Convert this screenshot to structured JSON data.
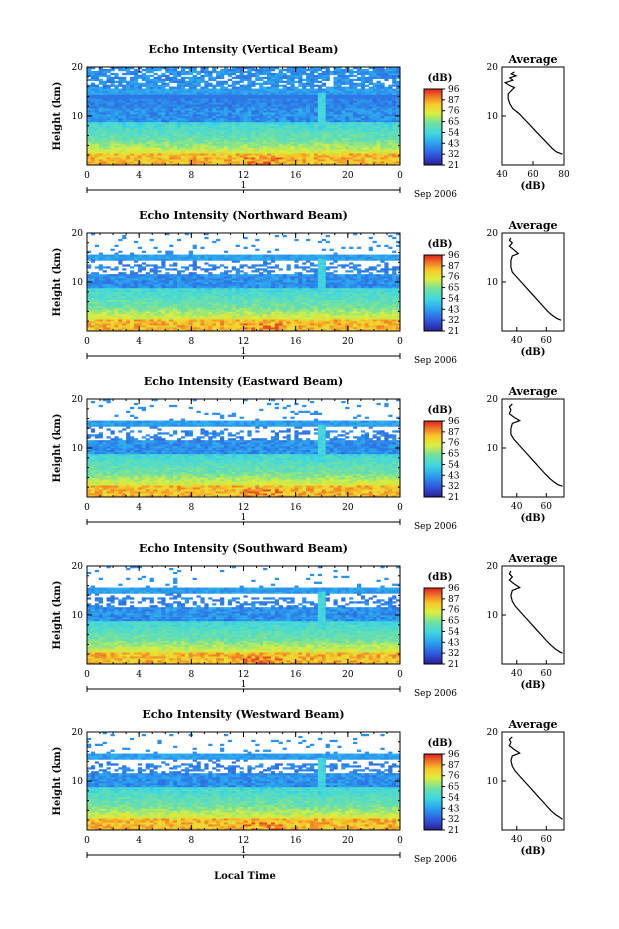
{
  "figure": {
    "xaxis_bottom_label": "Local Time",
    "date_label": "Sep 2006",
    "day_label": "1"
  },
  "chart_data": [
    {
      "type": "heatmap",
      "title": "Echo Intensity (Vertical Beam)",
      "ylabel": "Height (km)",
      "xlabel": "Local Time",
      "xlim": [
        0,
        24
      ],
      "ylim": [
        0,
        20
      ],
      "xticks": [
        "0",
        "4",
        "8",
        "12",
        "16",
        "20",
        "0"
      ],
      "yticks": [
        "20",
        "10"
      ],
      "colorbar": {
        "unit": "(dB)",
        "ticks": [
          "96",
          "87",
          "76",
          "65",
          "54",
          "43",
          "32",
          "21"
        ]
      },
      "profile": {
        "title": "Average",
        "xlabel": "(dB)",
        "xticks": [
          "40",
          "60",
          "80"
        ],
        "xlim": [
          40,
          80
        ],
        "yticks": [
          "20",
          "10"
        ],
        "points": [
          [
            48,
            19
          ],
          [
            46,
            18.6
          ],
          [
            49,
            18.2
          ],
          [
            45,
            17.8
          ],
          [
            47,
            17.3
          ],
          [
            42,
            16.8
          ],
          [
            45,
            16.2
          ],
          [
            48,
            15.8
          ],
          [
            46,
            15.2
          ],
          [
            44,
            14.5
          ],
          [
            44,
            13.5
          ],
          [
            45,
            12.5
          ],
          [
            47,
            11.5
          ],
          [
            51,
            10.5
          ],
          [
            54,
            9.5
          ],
          [
            57,
            8.5
          ],
          [
            60,
            7.5
          ],
          [
            63,
            6.5
          ],
          [
            66,
            5.5
          ],
          [
            69,
            4.5
          ],
          [
            72,
            3.5
          ],
          [
            75,
            2.7
          ],
          [
            79,
            2.2
          ]
        ]
      }
    },
    {
      "type": "heatmap",
      "title": "Echo Intensity (Northward Beam)",
      "ylabel": "Height (km)",
      "xlabel": "Local Time",
      "xlim": [
        0,
        24
      ],
      "ylim": [
        0,
        20
      ],
      "xticks": [
        "0",
        "4",
        "8",
        "12",
        "16",
        "20",
        "0"
      ],
      "yticks": [
        "20",
        "10"
      ],
      "colorbar": {
        "unit": "(dB)",
        "ticks": [
          "96",
          "87",
          "76",
          "65",
          "54",
          "43",
          "32",
          "21"
        ]
      },
      "profile": {
        "title": "Average",
        "xlabel": "(dB)",
        "xticks": [
          "40",
          "60"
        ],
        "xlim": [
          30,
          72
        ],
        "yticks": [
          "20",
          "10"
        ],
        "points": [
          [
            36,
            19
          ],
          [
            35,
            18.5
          ],
          [
            37,
            18
          ],
          [
            35,
            17.3
          ],
          [
            38,
            16.6
          ],
          [
            41,
            15.8
          ],
          [
            37,
            15.3
          ],
          [
            36,
            14.4
          ],
          [
            36,
            13
          ],
          [
            37,
            12
          ],
          [
            40,
            11
          ],
          [
            43,
            10
          ],
          [
            46,
            9
          ],
          [
            49,
            8
          ],
          [
            52,
            7
          ],
          [
            55,
            6
          ],
          [
            58,
            5
          ],
          [
            61,
            4
          ],
          [
            64,
            3.2
          ],
          [
            67,
            2.6
          ],
          [
            70,
            2.2
          ]
        ]
      }
    },
    {
      "type": "heatmap",
      "title": "Echo Intensity (Eastward Beam)",
      "ylabel": "Height (km)",
      "xlabel": "Local Time",
      "xlim": [
        0,
        24
      ],
      "ylim": [
        0,
        20
      ],
      "xticks": [
        "0",
        "4",
        "8",
        "12",
        "16",
        "20",
        "0"
      ],
      "yticks": [
        "20",
        "10"
      ],
      "colorbar": {
        "unit": "(dB)",
        "ticks": [
          "96",
          "87",
          "76",
          "65",
          "54",
          "43",
          "32",
          "21"
        ]
      },
      "profile": {
        "title": "Average",
        "xlabel": "(dB)",
        "xticks": [
          "40",
          "60"
        ],
        "xlim": [
          30,
          72
        ],
        "yticks": [
          "20",
          "10"
        ],
        "points": [
          [
            37,
            19
          ],
          [
            35,
            18.4
          ],
          [
            36,
            17.8
          ],
          [
            35,
            17
          ],
          [
            38,
            16.3
          ],
          [
            42,
            15.6
          ],
          [
            37,
            15
          ],
          [
            36,
            14
          ],
          [
            36,
            12.8
          ],
          [
            38,
            11.8
          ],
          [
            41,
            10.8
          ],
          [
            44,
            9.8
          ],
          [
            47,
            8.8
          ],
          [
            50,
            7.8
          ],
          [
            53,
            6.8
          ],
          [
            56,
            5.8
          ],
          [
            59,
            4.8
          ],
          [
            62,
            3.9
          ],
          [
            65,
            3.1
          ],
          [
            68,
            2.5
          ],
          [
            71,
            2.2
          ]
        ]
      }
    },
    {
      "type": "heatmap",
      "title": "Echo Intensity (Southward Beam)",
      "ylabel": "Height (km)",
      "xlabel": "Local Time",
      "xlim": [
        0,
        24
      ],
      "ylim": [
        0,
        20
      ],
      "xticks": [
        "0",
        "4",
        "8",
        "12",
        "16",
        "20",
        "0"
      ],
      "yticks": [
        "20",
        "10"
      ],
      "colorbar": {
        "unit": "(dB)",
        "ticks": [
          "96",
          "87",
          "76",
          "65",
          "54",
          "43",
          "32",
          "21"
        ]
      },
      "profile": {
        "title": "Average",
        "xlabel": "(dB)",
        "xticks": [
          "40",
          "60"
        ],
        "xlim": [
          30,
          72
        ],
        "yticks": [
          "20",
          "10"
        ],
        "points": [
          [
            36,
            19
          ],
          [
            35,
            18.4
          ],
          [
            37,
            17.8
          ],
          [
            35,
            17.1
          ],
          [
            38,
            16.4
          ],
          [
            42,
            15.6
          ],
          [
            37,
            15
          ],
          [
            36,
            14
          ],
          [
            37,
            12.8
          ],
          [
            39,
            11.8
          ],
          [
            42,
            10.8
          ],
          [
            45,
            9.8
          ],
          [
            48,
            8.8
          ],
          [
            51,
            7.8
          ],
          [
            54,
            6.8
          ],
          [
            57,
            5.8
          ],
          [
            60,
            4.8
          ],
          [
            63,
            3.9
          ],
          [
            66,
            3.1
          ],
          [
            69,
            2.5
          ],
          [
            71,
            2.2
          ]
        ]
      }
    },
    {
      "type": "heatmap",
      "title": "Echo Intensity (Westward Beam)",
      "ylabel": "Height (km)",
      "xlabel": "Local Time",
      "xlim": [
        0,
        24
      ],
      "ylim": [
        0,
        20
      ],
      "xticks": [
        "0",
        "4",
        "8",
        "12",
        "16",
        "20",
        "0"
      ],
      "yticks": [
        "20",
        "10"
      ],
      "colorbar": {
        "unit": "(dB)",
        "ticks": [
          "96",
          "87",
          "76",
          "65",
          "54",
          "43",
          "32",
          "21"
        ]
      },
      "profile": {
        "title": "Average",
        "xlabel": "(dB)",
        "xticks": [
          "40",
          "60"
        ],
        "xlim": [
          30,
          72
        ],
        "yticks": [
          "20",
          "10"
        ],
        "points": [
          [
            37,
            19
          ],
          [
            35,
            18.5
          ],
          [
            36,
            17.9
          ],
          [
            35,
            17.2
          ],
          [
            38,
            16.5
          ],
          [
            42,
            15.7
          ],
          [
            37,
            15.1
          ],
          [
            36,
            14.2
          ],
          [
            37,
            13
          ],
          [
            39,
            12
          ],
          [
            42,
            11
          ],
          [
            45,
            10
          ],
          [
            48,
            9
          ],
          [
            51,
            8
          ],
          [
            54,
            7
          ],
          [
            57,
            6
          ],
          [
            60,
            5
          ],
          [
            63,
            4
          ],
          [
            66,
            3.2
          ],
          [
            69,
            2.6
          ],
          [
            71,
            2.2
          ]
        ]
      }
    }
  ]
}
